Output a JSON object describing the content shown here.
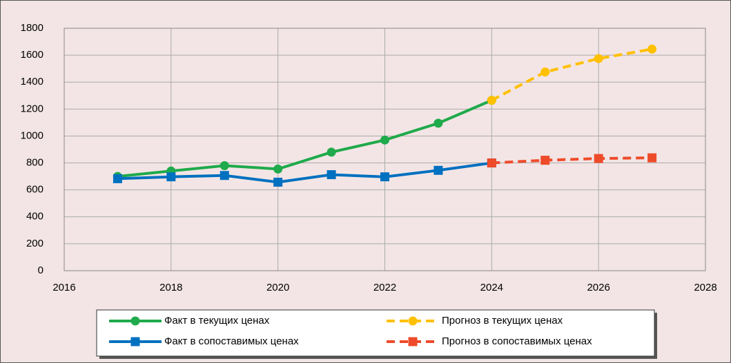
{
  "chart_data": {
    "type": "line",
    "x": [
      2017,
      2018,
      2019,
      2020,
      2021,
      2022,
      2023,
      2024,
      2025,
      2026,
      2027
    ],
    "series": [
      {
        "name": "Факт в текущих ценах",
        "color": "#1faa4b",
        "marker": "circle",
        "dashed": false,
        "values": [
          700,
          740,
          780,
          755,
          880,
          970,
          1095,
          1265,
          null,
          null,
          null
        ]
      },
      {
        "name": "Прогноз в текущих ценах",
        "color": "#ffc000",
        "marker": "circle",
        "dashed": true,
        "values": [
          null,
          null,
          null,
          null,
          null,
          null,
          null,
          1265,
          1475,
          1575,
          1645
        ]
      },
      {
        "name": "Факт в сопоставимых ценах",
        "color": "#0070c0",
        "marker": "square",
        "dashed": false,
        "values": [
          683,
          697,
          707,
          657,
          713,
          697,
          745,
          800,
          null,
          null,
          null
        ]
      },
      {
        "name": "Прогноз в сопоставимых ценах",
        "color": "#ee4b2b",
        "marker": "square",
        "dashed": true,
        "values": [
          null,
          null,
          null,
          null,
          null,
          null,
          null,
          800,
          820,
          833,
          838
        ]
      }
    ],
    "xlim": [
      2016,
      2028
    ],
    "xticks": [
      2016,
      2018,
      2020,
      2022,
      2024,
      2026,
      2028
    ],
    "ylim": [
      0,
      1800
    ],
    "yticks": [
      0,
      200,
      400,
      600,
      800,
      1000,
      1200,
      1400,
      1600,
      1800
    ],
    "grid": true,
    "legend": "bottom"
  }
}
